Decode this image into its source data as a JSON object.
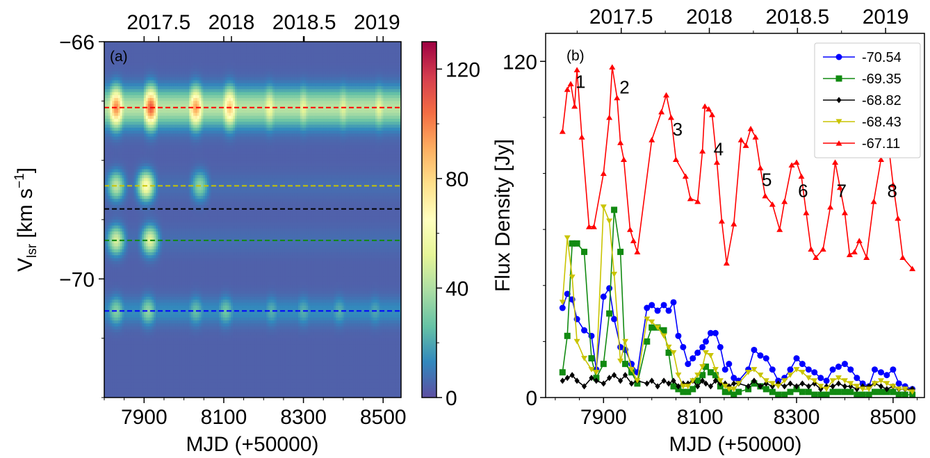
{
  "chart_data": [
    {
      "type": "heatmap",
      "panel_label": "(a)",
      "xlabel": "MJD (+50000)",
      "ylabel_main": "V",
      "ylabel_sub": "lsr",
      "ylabel_unit": " [km s",
      "ylabel_exp": "−1",
      "ylabel_close": "]",
      "xlim": [
        57800,
        58545
      ],
      "ylim": [
        -66,
        -72
      ],
      "x_ticks": [
        7900,
        8100,
        8300,
        8500
      ],
      "x_tick_labels": [
        "7900",
        "8100",
        "8300",
        "8500"
      ],
      "y_ticks": [
        -66,
        -70
      ],
      "y_tick_labels": [
        "−66",
        "−70"
      ],
      "top_x_ticks": [
        2017.5,
        2018,
        2018.5,
        2019
      ],
      "top_x_tick_labels": [
        "2017.5",
        "2018",
        "2018.5",
        "2019"
      ],
      "colorbar": {
        "range": [
          0,
          130
        ],
        "ticks": [
          0,
          40,
          80,
          120
        ],
        "tick_labels": [
          "0",
          "40",
          "80",
          "120"
        ],
        "colormap": "Spectral_r"
      },
      "emission_features": [
        {
          "velocity": -67.11,
          "peak_times": [
            57830,
            57917,
            58030,
            58115,
            58215,
            58300,
            58400,
            58490
          ],
          "strength": [
            95,
            105,
            90,
            80,
            55,
            50,
            48,
            50
          ]
        },
        {
          "velocity": -68.43,
          "peak_times": [
            57830,
            57905,
            58040
          ],
          "strength": [
            40,
            60,
            30
          ]
        },
        {
          "velocity": -69.35,
          "peak_times": [
            57830,
            57915
          ],
          "strength": [
            45,
            48
          ]
        },
        {
          "velocity": -70.54,
          "peak_times": [
            57830,
            57910,
            58030,
            58105,
            58220,
            58300,
            58390,
            58480
          ],
          "strength": [
            28,
            30,
            22,
            24,
            18,
            18,
            18,
            16
          ]
        }
      ],
      "reference_lines": [
        {
          "velocity": -67.11,
          "color": "#ff0000"
        },
        {
          "velocity": -68.43,
          "color": "#c9c400"
        },
        {
          "velocity": -68.82,
          "color": "#000000"
        },
        {
          "velocity": -69.35,
          "color": "#118a11"
        },
        {
          "velocity": -70.54,
          "color": "#0000ff"
        }
      ]
    },
    {
      "type": "line",
      "panel_label": "(b)",
      "xlabel": "MJD (+50000)",
      "ylabel": "Flux Density [Jy]",
      "xlim": [
        57780,
        58565
      ],
      "ylim": [
        0,
        130
      ],
      "x_ticks": [
        7900,
        8100,
        8300,
        8500
      ],
      "x_tick_labels": [
        "7900",
        "8100",
        "8300",
        "8500"
      ],
      "y_ticks": [
        0,
        120
      ],
      "y_tick_labels": [
        "0",
        "120"
      ],
      "top_x_ticks": [
        2017.5,
        2018,
        2018.5,
        2019
      ],
      "top_x_tick_labels": [
        "2017.5",
        "2018",
        "2018.5",
        "2019"
      ],
      "legend_position": "top-right",
      "annotations": [
        {
          "text": "1",
          "x": 57842,
          "y": 113
        },
        {
          "text": "2",
          "x": 57933,
          "y": 111
        },
        {
          "text": "3",
          "x": 58043,
          "y": 96
        },
        {
          "text": "4",
          "x": 58128,
          "y": 89
        },
        {
          "text": "5",
          "x": 58228,
          "y": 78
        },
        {
          "text": "6",
          "x": 58303,
          "y": 74
        },
        {
          "text": "7",
          "x": 58383,
          "y": 74
        },
        {
          "text": "8",
          "x": 58488,
          "y": 74
        }
      ],
      "series": [
        {
          "name": "-70.54",
          "color": "#0000ff",
          "marker": "circle",
          "x": [
            57815,
            57825,
            57835,
            57845,
            57860,
            57875,
            57885,
            57900,
            57912,
            57922,
            57935,
            57945,
            57958,
            57970,
            57990,
            58000,
            58012,
            58025,
            58035,
            58045,
            58055,
            58065,
            58075,
            58085,
            58095,
            58105,
            58112,
            58122,
            58132,
            58142,
            58152,
            58160,
            58170,
            58180,
            58200,
            58212,
            58225,
            58237,
            58250,
            58262,
            58275,
            58287,
            58300,
            58312,
            58325,
            58337,
            58350,
            58362,
            58375,
            58387,
            58400,
            58412,
            58425,
            58437,
            58450,
            58462,
            58475,
            58487,
            58500,
            58512,
            58525,
            58540
          ],
          "y": [
            32,
            37,
            35,
            28,
            24,
            22,
            10,
            36,
            39,
            28,
            18,
            17,
            12,
            9,
            32,
            33,
            31,
            33,
            31,
            34,
            22,
            18,
            12,
            14,
            16,
            18,
            20,
            23,
            23,
            18,
            10,
            12,
            7,
            6,
            10,
            17,
            15,
            14,
            10,
            6,
            7,
            10,
            14,
            12,
            10,
            9,
            7,
            6,
            10,
            11,
            12,
            10,
            7,
            5,
            4,
            10,
            9,
            8,
            10,
            5,
            4,
            3
          ]
        },
        {
          "name": "-69.35",
          "color": "#118a11",
          "marker": "square",
          "x": [
            57815,
            57825,
            57835,
            57845,
            57860,
            57875,
            57885,
            57900,
            57912,
            57922,
            57935,
            57945,
            57958,
            57970,
            57990,
            58000,
            58012,
            58025,
            58035,
            58045,
            58055,
            58065,
            58075,
            58085,
            58095,
            58105,
            58112,
            58122,
            58132,
            58142,
            58152,
            58160,
            58170,
            58180,
            58200,
            58212,
            58225,
            58237,
            58250,
            58262,
            58275,
            58287,
            58300,
            58312,
            58325,
            58337,
            58350,
            58362,
            58375,
            58387,
            58400,
            58412,
            58425,
            58437,
            58450,
            58462,
            58475,
            58487,
            58500,
            58512,
            58525,
            58540
          ],
          "y": [
            9,
            22,
            55,
            55,
            52,
            14,
            7,
            12,
            30,
            67,
            52,
            12,
            9,
            5,
            20,
            25,
            25,
            24,
            16,
            4,
            3,
            2,
            2,
            3,
            6,
            8,
            11,
            9,
            8,
            4,
            2,
            2,
            1,
            2,
            3,
            5,
            4,
            3,
            2,
            1,
            1,
            2,
            3,
            2,
            2,
            1,
            1,
            1,
            2,
            2,
            2,
            2,
            1,
            1,
            1,
            2,
            2,
            2,
            2,
            1,
            1,
            1
          ]
        },
        {
          "name": "-68.82",
          "color": "#000000",
          "marker": "diamond",
          "x": [
            57815,
            57825,
            57835,
            57845,
            57860,
            57875,
            57885,
            57900,
            57912,
            57922,
            57935,
            57945,
            57958,
            57970,
            57990,
            58000,
            58012,
            58025,
            58035,
            58045,
            58055,
            58065,
            58075,
            58085,
            58095,
            58105,
            58112,
            58122,
            58132,
            58142,
            58152,
            58160,
            58170,
            58180,
            58200,
            58212,
            58225,
            58237,
            58250,
            58262,
            58275,
            58287,
            58300,
            58312,
            58325,
            58337,
            58350,
            58362,
            58375,
            58387,
            58400,
            58412,
            58425,
            58437,
            58450,
            58462,
            58475,
            58487,
            58500,
            58512,
            58525,
            58540
          ],
          "y": [
            6,
            7,
            8,
            6,
            4,
            7,
            6,
            5,
            7,
            8,
            6,
            8,
            5,
            6,
            5,
            6,
            4,
            6,
            5,
            6,
            4,
            5,
            5,
            6,
            4,
            6,
            5,
            4,
            6,
            5,
            5,
            4,
            5,
            5,
            4,
            6,
            4,
            5,
            4,
            5,
            4,
            5,
            4,
            5,
            4,
            5,
            3,
            4,
            4,
            5,
            4,
            4,
            3,
            4,
            4,
            5,
            4,
            3,
            4,
            3,
            3,
            3
          ]
        },
        {
          "name": "-68.43",
          "color": "#c9c400",
          "marker": "triangle-down",
          "x": [
            57815,
            57825,
            57835,
            57845,
            57860,
            57875,
            57885,
            57900,
            57912,
            57922,
            57935,
            57945,
            57958,
            57970,
            57990,
            58000,
            58012,
            58025,
            58035,
            58045,
            58055,
            58065,
            58075,
            58085,
            58095,
            58105,
            58112,
            58122,
            58132,
            58142,
            58152,
            58160,
            58170,
            58180,
            58200,
            58212,
            58225,
            58237,
            58250,
            58262,
            58275,
            58287,
            58300,
            58312,
            58325,
            58337,
            58350,
            58362,
            58375,
            58387,
            58400,
            58412,
            58425,
            58437,
            58450,
            58462,
            58475,
            58487,
            58500,
            58512,
            58525,
            58540
          ],
          "y": [
            34,
            57,
            43,
            20,
            14,
            10,
            9,
            68,
            63,
            44,
            13,
            20,
            10,
            6,
            28,
            27,
            25,
            22,
            18,
            16,
            8,
            4,
            4,
            6,
            8,
            11,
            16,
            15,
            10,
            6,
            4,
            3,
            3,
            5,
            9,
            10,
            8,
            6,
            5,
            4,
            6,
            8,
            10,
            9,
            7,
            6,
            4,
            3,
            6,
            7,
            6,
            5,
            4,
            3,
            3,
            5,
            6,
            5,
            4,
            3,
            3,
            2
          ]
        },
        {
          "name": "-67.11",
          "color": "#ff0000",
          "marker": "triangle-up",
          "x": [
            57815,
            57825,
            57832,
            57840,
            57845,
            57855,
            57870,
            57880,
            57900,
            57912,
            57918,
            57928,
            57935,
            57942,
            57955,
            57962,
            57970,
            58000,
            58020,
            58030,
            58040,
            58050,
            58070,
            58080,
            58095,
            58105,
            58110,
            58118,
            58125,
            58135,
            58145,
            58155,
            58170,
            58185,
            58195,
            58205,
            58215,
            58225,
            58235,
            58250,
            58265,
            58275,
            58290,
            58300,
            58310,
            58320,
            58330,
            58340,
            58355,
            58370,
            58380,
            58390,
            58400,
            58410,
            58420,
            58430,
            58445,
            58460,
            58475,
            58485,
            58492,
            58500,
            58510,
            58520,
            58540
          ],
          "y": [
            95,
            110,
            112,
            104,
            117,
            93,
            61,
            61,
            80,
            100,
            118,
            107,
            91,
            85,
            60,
            56,
            52,
            92,
            102,
            108,
            100,
            85,
            79,
            71,
            70,
            88,
            104,
            103,
            101,
            84,
            63,
            48,
            62,
            92,
            90,
            96,
            93,
            82,
            72,
            69,
            60,
            70,
            83,
            84,
            79,
            66,
            53,
            50,
            53,
            68,
            84,
            75,
            66,
            51,
            52,
            56,
            50,
            70,
            85,
            94,
            88,
            76,
            64,
            50,
            46
          ]
        }
      ]
    }
  ]
}
